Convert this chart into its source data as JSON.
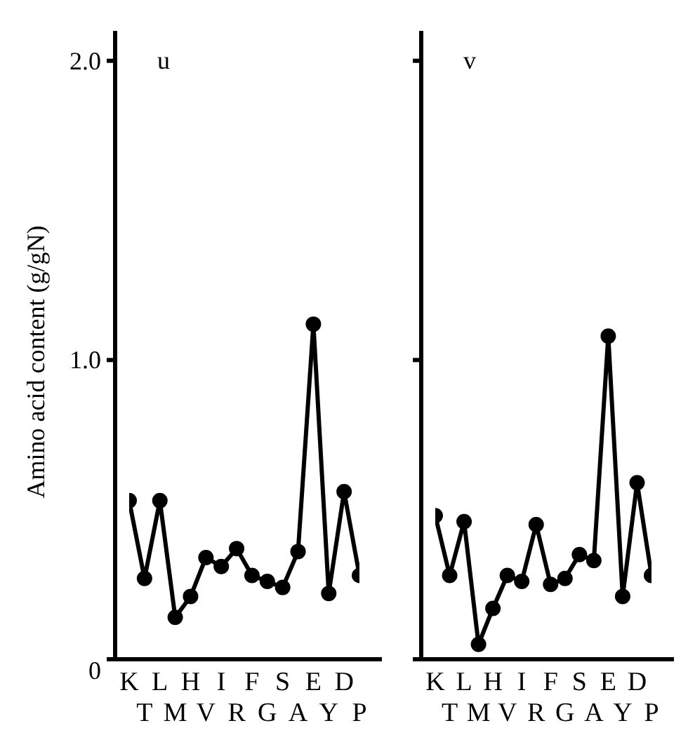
{
  "chart_data": [
    {
      "type": "line",
      "title": "u",
      "ylabel": "Amino acid content (g/gN)",
      "categories": [
        "K",
        "T",
        "L",
        "M",
        "H",
        "V",
        "I",
        "R",
        "F",
        "G",
        "S",
        "A",
        "E",
        "Y",
        "D",
        "P"
      ],
      "series": [
        {
          "color": "#000000",
          "values": [
            0.53,
            0.27,
            0.53,
            0.14,
            0.21,
            0.34,
            0.31,
            0.37,
            0.28,
            0.26,
            0.24,
            0.36,
            1.12,
            0.22,
            0.56,
            0.28
          ]
        }
      ],
      "ylim": [
        0,
        2.1
      ],
      "yticks": [
        0,
        {
          "value": 1,
          "label": "1.0"
        },
        {
          "value": 2,
          "label": "2.0"
        }
      ],
      "marker": "circle",
      "line_style": "solid",
      "grid": false,
      "legend": false
    },
    {
      "type": "line",
      "title": "v",
      "categories": [
        "K",
        "T",
        "L",
        "M",
        "H",
        "V",
        "I",
        "R",
        "F",
        "G",
        "S",
        "A",
        "E",
        "Y",
        "D",
        "P"
      ],
      "series": [
        {
          "color": "#000000",
          "values": [
            0.48,
            0.28,
            0.46,
            0.05,
            0.17,
            0.28,
            0.26,
            0.45,
            0.25,
            0.27,
            0.35,
            0.33,
            1.08,
            0.21,
            0.59,
            0.28
          ]
        }
      ],
      "ylim": [
        0,
        2.1
      ],
      "yticks": [
        {
          "value": 0,
          "label": null
        },
        {
          "value": 1,
          "label": null
        },
        {
          "value": 2,
          "label": null
        }
      ],
      "tick_labels": "x",
      "marker": "circle",
      "line_style": "solid",
      "grid": false,
      "legend": false
    }
  ]
}
